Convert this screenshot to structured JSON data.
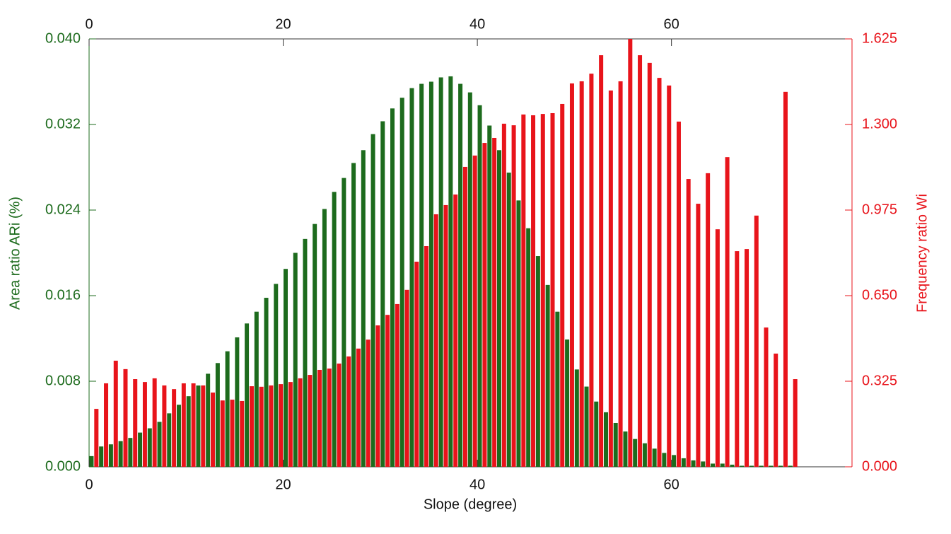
{
  "chart_data": {
    "type": "bar",
    "xlabel": "Slope (degree)",
    "ylabel": "Area ratio ARi (%)",
    "y2label": "Frequency ratio Wi",
    "x": [
      0,
      1,
      2,
      3,
      4,
      5,
      6,
      7,
      8,
      9,
      10,
      11,
      12,
      13,
      14,
      15,
      16,
      17,
      18,
      19,
      20,
      21,
      22,
      23,
      24,
      25,
      26,
      27,
      28,
      29,
      30,
      31,
      32,
      33,
      34,
      35,
      36,
      37,
      38,
      39,
      40,
      41,
      42,
      43,
      44,
      45,
      46,
      47,
      48,
      49,
      50,
      51,
      52,
      53,
      54,
      55,
      56,
      57,
      58,
      59,
      60,
      61,
      62,
      63,
      64,
      65,
      66,
      67,
      68,
      69,
      70,
      71,
      72
    ],
    "series": [
      {
        "name": "Area ratio ARi",
        "color": "#1d6b1d",
        "values": [
          0.001,
          0.0019,
          0.0021,
          0.0024,
          0.0027,
          0.0032,
          0.0036,
          0.0042,
          0.005,
          0.0058,
          0.0066,
          0.0076,
          0.0087,
          0.0097,
          0.0108,
          0.0121,
          0.0134,
          0.0145,
          0.0158,
          0.0171,
          0.0185,
          0.02,
          0.0213,
          0.0227,
          0.0241,
          0.0257,
          0.027,
          0.0284,
          0.0296,
          0.0311,
          0.0323,
          0.0335,
          0.0345,
          0.0354,
          0.0358,
          0.036,
          0.0364,
          0.0365,
          0.0358,
          0.035,
          0.0338,
          0.0319,
          0.0296,
          0.0275,
          0.0249,
          0.0223,
          0.0197,
          0.017,
          0.0145,
          0.0119,
          0.0091,
          0.0075,
          0.0061,
          0.0051,
          0.0041,
          0.0033,
          0.0026,
          0.0022,
          0.0017,
          0.0013,
          0.0011,
          0.0008,
          0.0006,
          0.0005,
          0.0003,
          0.0003,
          0.0002,
          0.0001,
          0.0001,
          0.0001,
          0.0001,
          0.0001,
          0.0001
        ]
      },
      {
        "name": "Frequency ratio Wi",
        "color": "#e8141b",
        "axis": "y2",
        "values": [
          0.22,
          0.317,
          0.403,
          0.371,
          0.333,
          0.322,
          0.336,
          0.309,
          0.295,
          0.317,
          0.317,
          0.309,
          0.282,
          0.252,
          0.255,
          0.25,
          0.306,
          0.304,
          0.309,
          0.314,
          0.322,
          0.336,
          0.349,
          0.368,
          0.373,
          0.392,
          0.419,
          0.449,
          0.483,
          0.537,
          0.577,
          0.618,
          0.672,
          0.779,
          0.838,
          0.959,
          0.994,
          1.034,
          1.139,
          1.182,
          1.23,
          1.249,
          1.303,
          1.297,
          1.338,
          1.335,
          1.34,
          1.343,
          1.378,
          1.456,
          1.464,
          1.493,
          1.563,
          1.429,
          1.464,
          1.625,
          1.563,
          1.534,
          1.477,
          1.448,
          1.311,
          1.093,
          0.999,
          1.115,
          0.902,
          1.176,
          0.819,
          0.827,
          0.954,
          0.529,
          0.43,
          1.424,
          0.333
        ]
      }
    ],
    "xlim": [
      0,
      78.6
    ],
    "xticks": [
      0,
      20,
      40,
      60
    ],
    "ylim": [
      0,
      0.04
    ],
    "yticks": [
      {
        "value": 0,
        "label": "0.000"
      },
      {
        "value": 0.008,
        "label": "0.008"
      },
      {
        "value": 0.016,
        "label": "0.016"
      },
      {
        "value": 0.024,
        "label": "0.024"
      },
      {
        "value": 0.032,
        "label": "0.032"
      },
      {
        "value": 0.04,
        "label": "0.040"
      }
    ],
    "y2lim": [
      0,
      1.625
    ],
    "y2ticks": [
      {
        "value": 0,
        "label": "0.000"
      },
      {
        "value": 0.325,
        "label": "0.325"
      },
      {
        "value": 0.65,
        "label": "0.650"
      },
      {
        "value": 0.975,
        "label": "0.975"
      },
      {
        "value": 1.3,
        "label": "1.300"
      },
      {
        "value": 1.625,
        "label": "1.625"
      }
    ]
  }
}
